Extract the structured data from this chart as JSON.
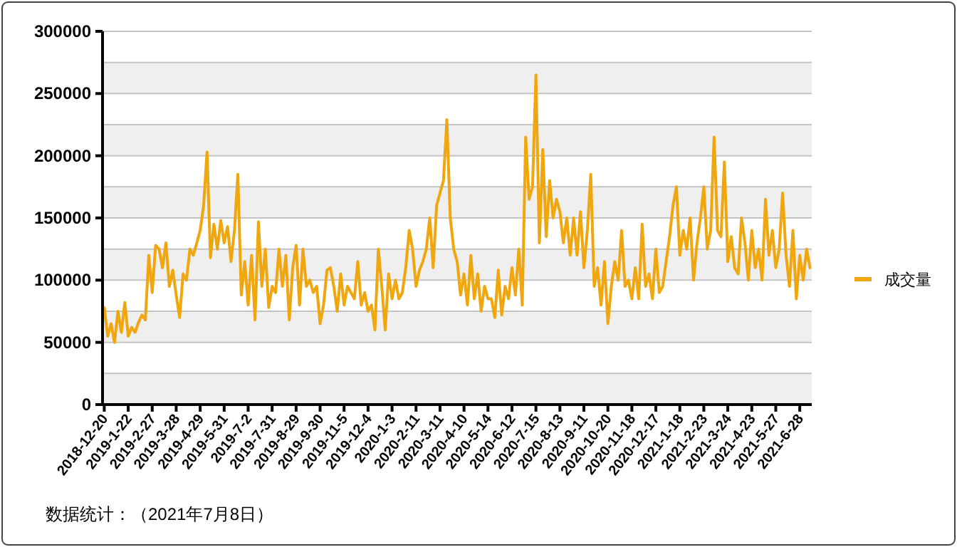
{
  "chart_data": {
    "type": "line",
    "categories": [
      "2018-12-20",
      null,
      null,
      null,
      null,
      null,
      null,
      "2019-1-22",
      null,
      null,
      null,
      null,
      null,
      null,
      "2019-2-27",
      null,
      null,
      null,
      null,
      null,
      null,
      "2019-3-28",
      null,
      null,
      null,
      null,
      null,
      null,
      "2019-4-29",
      null,
      null,
      null,
      null,
      null,
      null,
      "2019-5-31",
      null,
      null,
      null,
      null,
      null,
      null,
      "2019-7-2",
      null,
      null,
      null,
      null,
      null,
      null,
      "2019-7-31",
      null,
      null,
      null,
      null,
      null,
      null,
      "2019-8-29",
      null,
      null,
      null,
      null,
      null,
      null,
      "2019-9-30",
      null,
      null,
      null,
      null,
      null,
      null,
      "2019-11-5",
      null,
      null,
      null,
      null,
      null,
      null,
      "2019-12-4",
      null,
      null,
      null,
      null,
      null,
      null,
      "2020-1-3",
      null,
      null,
      null,
      null,
      null,
      null,
      "2020-2-11",
      null,
      null,
      null,
      null,
      null,
      null,
      "2020-3-11",
      null,
      null,
      null,
      null,
      null,
      null,
      "2020-4-10",
      null,
      null,
      null,
      null,
      null,
      null,
      "2020-5-14",
      null,
      null,
      null,
      null,
      null,
      null,
      "2020-6-12",
      null,
      null,
      null,
      null,
      null,
      null,
      "2020-7-15",
      null,
      null,
      null,
      null,
      null,
      null,
      "2020-8-13",
      null,
      null,
      null,
      null,
      null,
      null,
      "2020-9-11",
      null,
      null,
      null,
      null,
      null,
      null,
      "2020-10-20",
      null,
      null,
      null,
      null,
      null,
      null,
      "2020-11-18",
      null,
      null,
      null,
      null,
      null,
      null,
      "2020-12-17",
      null,
      null,
      null,
      null,
      null,
      null,
      "2021-1-18",
      null,
      null,
      null,
      null,
      null,
      null,
      "2021-2-23",
      null,
      null,
      null,
      null,
      null,
      null,
      "2021-3-24",
      null,
      null,
      null,
      null,
      null,
      null,
      "2021-4-23",
      null,
      null,
      null,
      null,
      null,
      null,
      "2021-5-27",
      null,
      null,
      null,
      null,
      null,
      null,
      "2021-6-28",
      null,
      null,
      null
    ],
    "series": [
      {
        "name": "成交量",
        "color": "#f0a70f",
        "values": [
          78000,
          55000,
          65000,
          50000,
          75000,
          58000,
          82000,
          55000,
          62000,
          58000,
          66000,
          72000,
          68000,
          120000,
          90000,
          128000,
          125000,
          110000,
          130000,
          95000,
          108000,
          88000,
          70000,
          105000,
          100000,
          125000,
          120000,
          130000,
          140000,
          160000,
          203000,
          118000,
          145000,
          125000,
          148000,
          130000,
          143000,
          115000,
          140000,
          185000,
          88000,
          115000,
          80000,
          120000,
          68000,
          147000,
          95000,
          125000,
          78000,
          95000,
          90000,
          125000,
          95000,
          120000,
          68000,
          110000,
          128000,
          80000,
          125000,
          95000,
          100000,
          90000,
          95000,
          65000,
          80000,
          108000,
          110000,
          95000,
          75000,
          105000,
          80000,
          95000,
          90000,
          85000,
          115000,
          80000,
          90000,
          75000,
          80000,
          60000,
          125000,
          95000,
          60000,
          105000,
          85000,
          100000,
          85000,
          90000,
          110000,
          140000,
          125000,
          95000,
          108000,
          115000,
          125000,
          150000,
          110000,
          160000,
          170000,
          180000,
          229000,
          150000,
          125000,
          115000,
          88000,
          105000,
          80000,
          120000,
          85000,
          105000,
          75000,
          95000,
          85000,
          85000,
          70000,
          108000,
          72000,
          95000,
          85000,
          110000,
          88000,
          125000,
          80000,
          215000,
          165000,
          175000,
          265000,
          130000,
          205000,
          135000,
          180000,
          150000,
          165000,
          155000,
          130000,
          150000,
          120000,
          150000,
          120000,
          155000,
          110000,
          140000,
          185000,
          95000,
          110000,
          80000,
          115000,
          65000,
          95000,
          115000,
          100000,
          140000,
          95000,
          100000,
          85000,
          110000,
          85000,
          145000,
          95000,
          105000,
          85000,
          125000,
          90000,
          95000,
          115000,
          135000,
          160000,
          175000,
          120000,
          140000,
          125000,
          150000,
          100000,
          130000,
          150000,
          175000,
          125000,
          140000,
          215000,
          140000,
          135000,
          195000,
          115000,
          135000,
          110000,
          105000,
          150000,
          130000,
          100000,
          140000,
          110000,
          125000,
          100000,
          165000,
          120000,
          140000,
          110000,
          125000,
          170000,
          120000,
          95000,
          140000,
          85000,
          120000,
          100000,
          125000,
          110000
        ]
      }
    ],
    "ylim": [
      0,
      300000
    ],
    "yticks": [
      0,
      50000,
      100000,
      150000,
      200000,
      250000,
      300000
    ],
    "grid": true,
    "legend": "right",
    "bands": [
      {
        "axis": "y",
        "from": 0,
        "to": 25000,
        "color": "#efefef"
      },
      {
        "axis": "y",
        "from": 50000,
        "to": 75000,
        "color": "#efefef"
      },
      {
        "axis": "y",
        "from": 100000,
        "to": 125000,
        "color": "#efefef"
      },
      {
        "axis": "y",
        "from": 150000,
        "to": 175000,
        "color": "#efefef"
      },
      {
        "axis": "y",
        "from": 200000,
        "to": 225000,
        "color": "#efefef"
      },
      {
        "axis": "y",
        "from": 250000,
        "to": 275000,
        "color": "#efefef"
      }
    ],
    "annotations": [
      "数据统计：（2021年7月8日）"
    ]
  }
}
